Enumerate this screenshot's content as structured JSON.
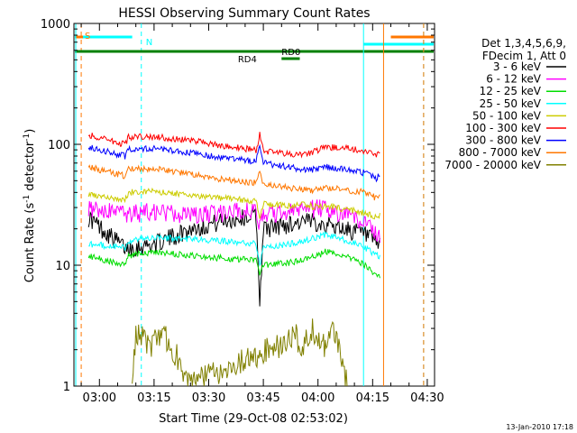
{
  "chart_data": {
    "type": "line",
    "title": "HESSI Observing Summary Count Rates",
    "xlabel": "Start Time (29-Oct-08 02:53:02)",
    "ylabel_main": "Count Rate (s",
    "ylabel_sup1": "-1",
    "ylabel_mid": " detector",
    "ylabel_sup2": "-1",
    "ylabel_end": ")",
    "yscale": "log",
    "ylim": [
      1,
      1000
    ],
    "xlim_minutes": [
      -7,
      92
    ],
    "xtick_labels": [
      "03:00",
      "03:15",
      "03:30",
      "03:45",
      "04:00",
      "04:15",
      "04:30"
    ],
    "xtick_minutes": [
      0,
      15,
      30,
      45,
      60,
      75,
      90
    ],
    "ytick_labels": [
      "1",
      "10",
      "100",
      "1000"
    ],
    "ytick_values": [
      1,
      10,
      100,
      1000
    ],
    "footer": "13-Jan-2010 17:18",
    "legend_header": [
      "Det 1,3,4,5,6,9,",
      "FDecim 1, Att 0"
    ],
    "series": [
      {
        "name": "3 - 6 keV",
        "color": "#000000",
        "points": [
          [
            -3,
            25
          ],
          [
            7,
            14
          ],
          [
            8,
            14
          ],
          [
            15,
            15
          ],
          [
            25,
            20
          ],
          [
            33,
            23
          ],
          [
            43,
            26
          ],
          [
            44,
            5
          ],
          [
            45,
            20
          ],
          [
            52,
            22
          ],
          [
            56,
            23
          ],
          [
            60,
            23
          ],
          [
            62,
            22
          ],
          [
            68,
            20
          ],
          [
            73,
            18
          ],
          [
            76,
            15
          ],
          [
            77,
            15
          ]
        ]
      },
      {
        "name": "6 - 12 keV",
        "color": "#ff00ff",
        "points": [
          [
            -3,
            30
          ],
          [
            7,
            27
          ],
          [
            8,
            27
          ],
          [
            15,
            28
          ],
          [
            25,
            26
          ],
          [
            33,
            27
          ],
          [
            43,
            29
          ],
          [
            44,
            20
          ],
          [
            45,
            27
          ],
          [
            52,
            28
          ],
          [
            56,
            29
          ],
          [
            60,
            30
          ],
          [
            62,
            29
          ],
          [
            68,
            26
          ],
          [
            73,
            22
          ],
          [
            76,
            18
          ],
          [
            77,
            18
          ]
        ]
      },
      {
        "name": "12 - 25 keV",
        "color": "#00dd00",
        "points": [
          [
            -3,
            12
          ],
          [
            7,
            10
          ],
          [
            8,
            12
          ],
          [
            15,
            13
          ],
          [
            25,
            12
          ],
          [
            33,
            11.5
          ],
          [
            43,
            11
          ],
          [
            44,
            8
          ],
          [
            45,
            10
          ],
          [
            52,
            10.5
          ],
          [
            56,
            11
          ],
          [
            60,
            12
          ],
          [
            62,
            13
          ],
          [
            68,
            12
          ],
          [
            73,
            10
          ],
          [
            76,
            8
          ],
          [
            77,
            8
          ]
        ]
      },
      {
        "name": "25 - 50 keV",
        "color": "#00ffff",
        "points": [
          [
            -3,
            15
          ],
          [
            7,
            14
          ],
          [
            8,
            16
          ],
          [
            15,
            17
          ],
          [
            25,
            16.5
          ],
          [
            33,
            16
          ],
          [
            43,
            15
          ],
          [
            44,
            10
          ],
          [
            45,
            14
          ],
          [
            52,
            15
          ],
          [
            56,
            16
          ],
          [
            60,
            17
          ],
          [
            62,
            18
          ],
          [
            68,
            16
          ],
          [
            73,
            14
          ],
          [
            76,
            12
          ],
          [
            77,
            12
          ]
        ]
      },
      {
        "name": "50 - 100 keV",
        "color": "#cccc00",
        "points": [
          [
            -3,
            38
          ],
          [
            7,
            34
          ],
          [
            8,
            40
          ],
          [
            15,
            41
          ],
          [
            25,
            38
          ],
          [
            33,
            36
          ],
          [
            43,
            34
          ],
          [
            44,
            25
          ],
          [
            45,
            32
          ],
          [
            52,
            31
          ],
          [
            56,
            32
          ],
          [
            60,
            30
          ],
          [
            62,
            31
          ],
          [
            68,
            29
          ],
          [
            73,
            27
          ],
          [
            76,
            25
          ],
          [
            77,
            26
          ]
        ]
      },
      {
        "name": "100 - 300 keV",
        "color": "#ff0000",
        "points": [
          [
            -3,
            120
          ],
          [
            7,
            100
          ],
          [
            8,
            115
          ],
          [
            15,
            116
          ],
          [
            25,
            108
          ],
          [
            33,
            98
          ],
          [
            43,
            90
          ],
          [
            44,
            120
          ],
          [
            45,
            88
          ],
          [
            52,
            84
          ],
          [
            56,
            82
          ],
          [
            60,
            90
          ],
          [
            62,
            95
          ],
          [
            68,
            93
          ],
          [
            73,
            88
          ],
          [
            76,
            80
          ],
          [
            77,
            90
          ]
        ]
      },
      {
        "name": "300 - 800 keV",
        "color": "#0000ff",
        "points": [
          [
            -3,
            95
          ],
          [
            7,
            80
          ],
          [
            8,
            92
          ],
          [
            15,
            92
          ],
          [
            25,
            85
          ],
          [
            33,
            78
          ],
          [
            43,
            72
          ],
          [
            44,
            95
          ],
          [
            45,
            70
          ],
          [
            52,
            65
          ],
          [
            56,
            62
          ],
          [
            60,
            62
          ],
          [
            62,
            65
          ],
          [
            68,
            62
          ],
          [
            73,
            58
          ],
          [
            76,
            52
          ],
          [
            77,
            56
          ]
        ]
      },
      {
        "name": "800 - 7000 keV",
        "color": "#ff7700",
        "points": [
          [
            -3,
            65
          ],
          [
            7,
            55
          ],
          [
            8,
            64
          ],
          [
            15,
            63
          ],
          [
            25,
            57
          ],
          [
            33,
            52
          ],
          [
            43,
            48
          ],
          [
            44,
            60
          ],
          [
            45,
            46
          ],
          [
            52,
            44
          ],
          [
            56,
            42
          ],
          [
            60,
            42
          ],
          [
            62,
            44
          ],
          [
            68,
            42
          ],
          [
            73,
            40
          ],
          [
            76,
            36
          ],
          [
            77,
            38
          ]
        ]
      },
      {
        "name": "7000 - 20000 keV",
        "color": "#808000",
        "points": [
          [
            9,
            1.0
          ],
          [
            10,
            2.5
          ],
          [
            12,
            2.5
          ],
          [
            14,
            2.0
          ],
          [
            16,
            2.5
          ],
          [
            18,
            2.5
          ],
          [
            20,
            2.0
          ],
          [
            22,
            1.6
          ],
          [
            24,
            1.0
          ],
          [
            52,
            2.3
          ],
          [
            54,
            2.5
          ],
          [
            56,
            2.0
          ],
          [
            58,
            3.0
          ],
          [
            60,
            2.5
          ],
          [
            62,
            2.0
          ],
          [
            64,
            2.7
          ],
          [
            66,
            2.0
          ],
          [
            68,
            1.0
          ]
        ]
      }
    ],
    "annotations": {
      "S": "S",
      "N": "N",
      "RD0": "RD0",
      "RD4": "RD4"
    }
  }
}
